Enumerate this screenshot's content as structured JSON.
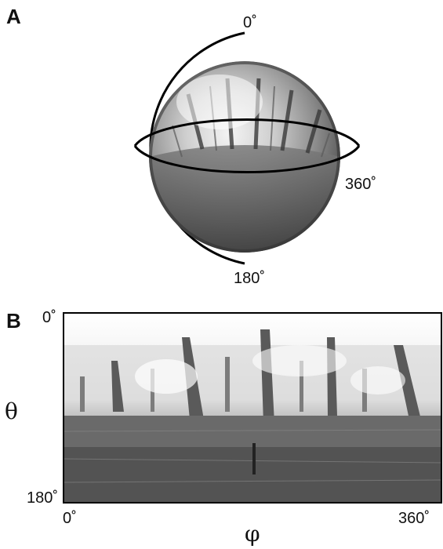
{
  "panel_a": {
    "letter": "A",
    "label_top": "0˚",
    "label_right": "360˚",
    "label_bottom": "180˚"
  },
  "panel_b": {
    "letter": "B",
    "theta_top": "0˚",
    "theta_bottom": "180˚",
    "phi_left": "0˚",
    "phi_right": "360˚",
    "theta_symbol": "θ",
    "phi_symbol": "φ"
  }
}
